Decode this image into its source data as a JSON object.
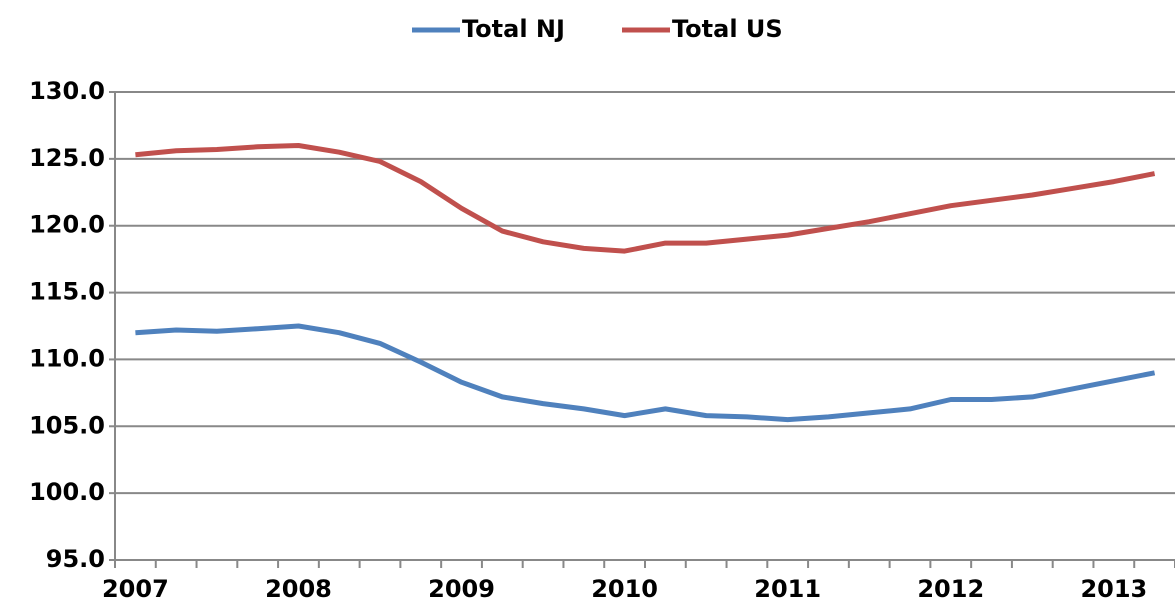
{
  "chart_data": {
    "type": "line",
    "categories": [
      "2007",
      null,
      null,
      null,
      "2008",
      null,
      null,
      null,
      "2009",
      null,
      null,
      null,
      "2010",
      null,
      null,
      null,
      "2011",
      null,
      null,
      null,
      "2012",
      null,
      null,
      null,
      "2013",
      null
    ],
    "series": [
      {
        "name": "Total NJ",
        "color": "#4f81bd",
        "values": [
          112.0,
          112.2,
          112.1,
          112.3,
          112.5,
          112.0,
          111.2,
          109.8,
          108.3,
          107.2,
          106.7,
          106.3,
          105.8,
          106.3,
          105.8,
          105.7,
          105.5,
          105.7,
          106.0,
          106.3,
          107.0,
          107.0,
          107.2,
          107.8,
          108.4,
          109.0
        ]
      },
      {
        "name": "Total US",
        "color": "#c0504d",
        "values": [
          125.3,
          125.6,
          125.7,
          125.9,
          126.0,
          125.5,
          124.8,
          123.3,
          121.3,
          119.6,
          118.8,
          118.3,
          118.1,
          118.7,
          118.7,
          119.0,
          119.3,
          119.8,
          120.3,
          120.9,
          121.5,
          121.9,
          122.3,
          122.8,
          123.3,
          123.9
        ]
      }
    ],
    "ylim": [
      95,
      130
    ],
    "yticks": [
      {
        "value": 95,
        "label": "95.0"
      },
      {
        "value": 100,
        "label": "100.0"
      },
      {
        "value": 105,
        "label": "105.0"
      },
      {
        "value": 110,
        "label": "110.0"
      },
      {
        "value": 115,
        "label": "115.0"
      },
      {
        "value": 120,
        "label": "120.0"
      },
      {
        "value": 125,
        "label": "125.0"
      },
      {
        "value": 130,
        "label": "130.0"
      }
    ],
    "grid": true,
    "legend": "top"
  }
}
